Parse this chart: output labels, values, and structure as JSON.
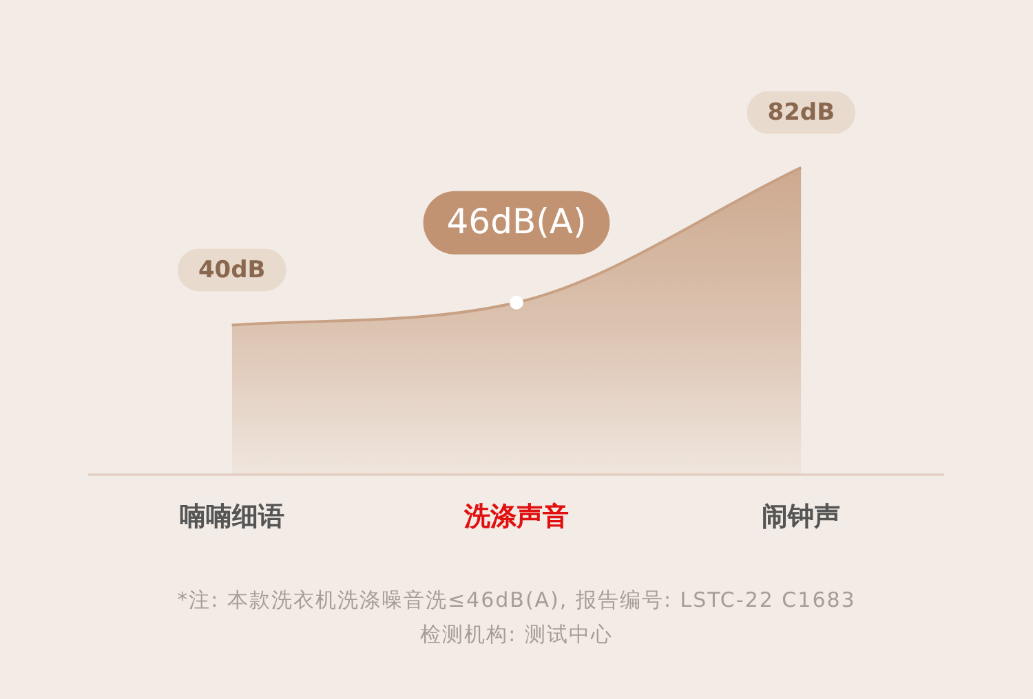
{
  "chart_data": {
    "type": "area",
    "categories": [
      "喃喃细语",
      "洗涤声音",
      "闹钟声"
    ],
    "values": [
      40,
      46,
      82
    ],
    "color": "#c8a083",
    "value_labels": [
      "40dB",
      null,
      "82dB"
    ],
    "annotations": [
      {
        "text": "46dB(A)",
        "x": "洗涤声音",
        "y": 46
      },
      "*注: 本款洗衣机洗涤噪音洗≤46dB(A), 报告编号: LSTC-22 C1683",
      "检测机构: 测试中心"
    ]
  }
}
